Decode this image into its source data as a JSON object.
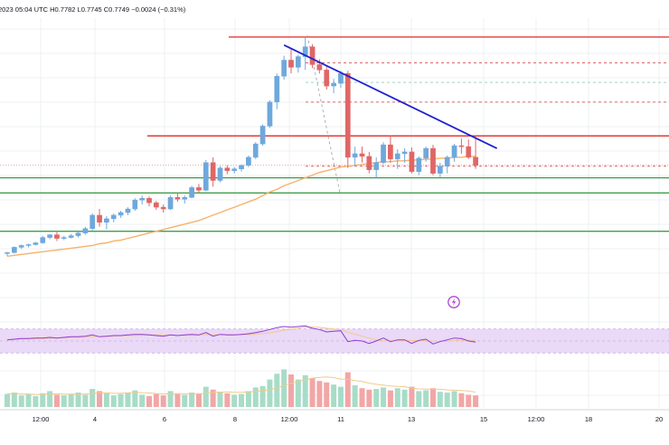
{
  "header": {
    "text": "2023 05:04 UTC   H0.7782  L0.7745  C0.7749  −0.0024 (−0.31%)"
  },
  "colors": {
    "up": "#6fa8dc",
    "down": "#e06666",
    "ma": "#f6b26b",
    "trend": "#1f22d0",
    "resistance": "#e33b3b",
    "support": "#3f9f4a",
    "dashed_red": "#e06666",
    "dashed_teal": "#9fd3c7",
    "rsi_band": "#ead9f7",
    "rsi_line": "#8e3ed7",
    "vol_up": "#a8dcc7",
    "vol_down": "#f2a6a6"
  },
  "chart_data": {
    "type": "candlestick",
    "x_ticks": [
      "12:00",
      "4",
      "6",
      "8",
      "12:00",
      "11",
      "13",
      "15",
      "12:00",
      "18",
      "20"
    ],
    "resistance_levels": [
      0.7893,
      0.7782
    ],
    "support_levels": [
      0.7735,
      0.7718,
      0.7675
    ],
    "dashed_levels": [
      0.7864,
      0.7842,
      0.782,
      0.7748
    ],
    "trendline": {
      "from": [
        39,
        0.7884
      ],
      "to": [
        69,
        0.7768
      ]
    },
    "candles": [
      [
        0.765,
        0.7652,
        0.7647,
        0.7651
      ],
      [
        0.7651,
        0.7658,
        0.765,
        0.7657
      ],
      [
        0.7657,
        0.766,
        0.7655,
        0.7659
      ],
      [
        0.7659,
        0.7661,
        0.7657,
        0.766
      ],
      [
        0.766,
        0.7663,
        0.7659,
        0.7662
      ],
      [
        0.7662,
        0.767,
        0.7661,
        0.7668
      ],
      [
        0.7668,
        0.7672,
        0.7666,
        0.7671
      ],
      [
        0.7671,
        0.7674,
        0.7664,
        0.7667
      ],
      [
        0.7667,
        0.767,
        0.7665,
        0.7668
      ],
      [
        0.7668,
        0.7672,
        0.7667,
        0.767
      ],
      [
        0.767,
        0.7674,
        0.7668,
        0.7673
      ],
      [
        0.7673,
        0.768,
        0.7671,
        0.7678
      ],
      [
        0.7678,
        0.7695,
        0.7676,
        0.7693
      ],
      [
        0.7693,
        0.77,
        0.768,
        0.7685
      ],
      [
        0.7685,
        0.7692,
        0.7677,
        0.7689
      ],
      [
        0.7689,
        0.7695,
        0.7685,
        0.7693
      ],
      [
        0.7693,
        0.7698,
        0.769,
        0.7696
      ],
      [
        0.7696,
        0.7702,
        0.7693,
        0.77
      ],
      [
        0.77,
        0.7712,
        0.7698,
        0.771
      ],
      [
        0.771,
        0.7715,
        0.7705,
        0.7712
      ],
      [
        0.7712,
        0.7714,
        0.7703,
        0.7707
      ],
      [
        0.7707,
        0.7709,
        0.7699,
        0.7702
      ],
      [
        0.7702,
        0.7705,
        0.7696,
        0.77
      ],
      [
        0.77,
        0.7715,
        0.7699,
        0.7713
      ],
      [
        0.7713,
        0.7718,
        0.7708,
        0.7711
      ],
      [
        0.7711,
        0.7715,
        0.7706,
        0.7713
      ],
      [
        0.7713,
        0.7726,
        0.7712,
        0.7724
      ],
      [
        0.7724,
        0.7728,
        0.7718,
        0.7721
      ],
      [
        0.7721,
        0.7755,
        0.772,
        0.7752
      ],
      [
        0.7752,
        0.7758,
        0.7725,
        0.7732
      ],
      [
        0.7732,
        0.7748,
        0.773,
        0.7746
      ],
      [
        0.7746,
        0.7749,
        0.7739,
        0.7743
      ],
      [
        0.7743,
        0.7747,
        0.774,
        0.7745
      ],
      [
        0.7745,
        0.775,
        0.7742,
        0.7749
      ],
      [
        0.7749,
        0.776,
        0.7747,
        0.7758
      ],
      [
        0.7758,
        0.7775,
        0.7756,
        0.7773
      ],
      [
        0.7773,
        0.7795,
        0.7771,
        0.7793
      ],
      [
        0.7793,
        0.7822,
        0.7791,
        0.782
      ],
      [
        0.782,
        0.7852,
        0.7812,
        0.7849
      ],
      [
        0.7849,
        0.7872,
        0.7845,
        0.7867
      ],
      [
        0.7867,
        0.788,
        0.7852,
        0.7859
      ],
      [
        0.7859,
        0.7873,
        0.7853,
        0.7871
      ],
      [
        0.7871,
        0.7893,
        0.7856,
        0.7882
      ],
      [
        0.7882,
        0.7885,
        0.7858,
        0.7862
      ],
      [
        0.7862,
        0.7868,
        0.7852,
        0.7856
      ],
      [
        0.7856,
        0.786,
        0.7834,
        0.7838
      ],
      [
        0.7838,
        0.7846,
        0.783,
        0.7841
      ],
      [
        0.7841,
        0.7855,
        0.7836,
        0.7852
      ],
      [
        0.7852,
        0.7855,
        0.7746,
        0.7758
      ],
      [
        0.7758,
        0.777,
        0.7748,
        0.7762
      ],
      [
        0.7762,
        0.777,
        0.7752,
        0.7759
      ],
      [
        0.7759,
        0.7764,
        0.774,
        0.7744
      ],
      [
        0.7744,
        0.7758,
        0.7735,
        0.7752
      ],
      [
        0.7752,
        0.7775,
        0.775,
        0.7772
      ],
      [
        0.7772,
        0.7782,
        0.7752,
        0.7756
      ],
      [
        0.7756,
        0.7767,
        0.7745,
        0.7762
      ],
      [
        0.7762,
        0.7768,
        0.7752,
        0.7764
      ],
      [
        0.7764,
        0.7769,
        0.774,
        0.7742
      ],
      [
        0.7742,
        0.7759,
        0.7738,
        0.7757
      ],
      [
        0.7757,
        0.777,
        0.7753,
        0.7768
      ],
      [
        0.7768,
        0.7772,
        0.7738,
        0.774
      ],
      [
        0.774,
        0.7752,
        0.7736,
        0.7748
      ],
      [
        0.7748,
        0.776,
        0.774,
        0.7758
      ],
      [
        0.7758,
        0.7773,
        0.7753,
        0.7771
      ],
      [
        0.7771,
        0.7779,
        0.7762,
        0.777
      ],
      [
        0.777,
        0.7778,
        0.7756,
        0.7758
      ],
      [
        0.7758,
        0.7782,
        0.7745,
        0.7749
      ]
    ],
    "ma": [
      0.7647,
      0.7648,
      0.7649,
      0.765,
      0.7651,
      0.7652,
      0.7653,
      0.7654,
      0.7655,
      0.7656,
      0.7657,
      0.7658,
      0.7659,
      0.7661,
      0.7662,
      0.7664,
      0.7665,
      0.7667,
      0.7669,
      0.7671,
      0.7673,
      0.7675,
      0.7677,
      0.7679,
      0.7681,
      0.7683,
      0.7685,
      0.7687,
      0.769,
      0.7693,
      0.7696,
      0.7699,
      0.7702,
      0.7705,
      0.7708,
      0.7711,
      0.7715,
      0.7719,
      0.7722,
      0.7726,
      0.7729,
      0.7732,
      0.7735,
      0.7738,
      0.7741,
      0.7743,
      0.7745,
      0.7747,
      0.7748,
      0.7749,
      0.775,
      0.7751,
      0.7752,
      0.7753,
      0.7753,
      0.7754,
      0.7754,
      0.7755,
      0.7755,
      0.7756,
      0.7756,
      0.7757,
      0.7757,
      0.7758,
      0.7758,
      0.7759,
      0.7759
    ],
    "rsi": [
      52,
      53,
      54,
      54,
      55,
      55,
      56,
      55,
      56,
      57,
      57,
      58,
      60,
      57,
      58,
      59,
      59,
      60,
      61,
      61,
      60,
      59,
      58,
      60,
      59,
      60,
      61,
      60,
      64,
      58,
      61,
      60,
      60,
      61,
      62,
      64,
      66,
      69,
      72,
      74,
      73,
      74,
      75,
      71,
      69,
      65,
      66,
      67,
      49,
      51,
      50,
      46,
      50,
      55,
      49,
      52,
      52,
      46,
      51,
      53,
      45,
      49,
      52,
      55,
      54,
      50,
      48
    ],
    "volume": [
      18,
      20,
      16,
      18,
      15,
      19,
      22,
      17,
      16,
      18,
      20,
      17,
      25,
      22,
      19,
      16,
      18,
      20,
      23,
      17,
      15,
      18,
      16,
      22,
      18,
      17,
      20,
      19,
      28,
      24,
      21,
      19,
      17,
      18,
      22,
      27,
      29,
      38,
      46,
      52,
      45,
      38,
      44,
      40,
      36,
      34,
      31,
      28,
      48,
      30,
      26,
      24,
      25,
      27,
      23,
      26,
      24,
      28,
      22,
      23,
      26,
      21,
      20,
      22,
      19,
      17,
      16
    ]
  }
}
